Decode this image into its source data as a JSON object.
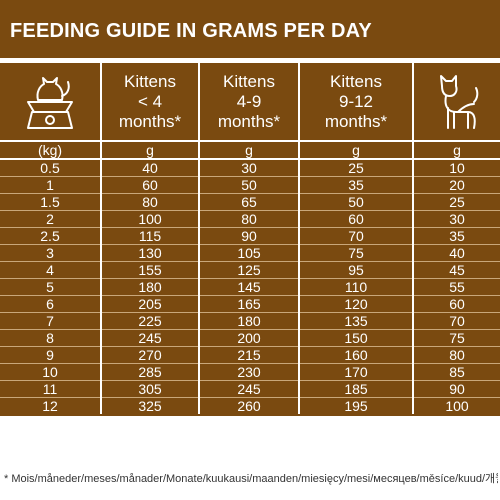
{
  "title": "FEEDING GUIDE IN GRAMS PER DAY",
  "header": {
    "col1_lines": [
      "Kittens",
      "< 4",
      "months*"
    ],
    "col2_lines": [
      "Kittens",
      "4-9",
      "months*"
    ],
    "col3_lines": [
      "Kittens",
      "9-12",
      "months*"
    ]
  },
  "units": {
    "weight": "(kg)",
    "col1": "g",
    "col2": "g",
    "col3": "g",
    "col4": "g"
  },
  "rows": [
    [
      "0.5",
      "40",
      "30",
      "25",
      "10"
    ],
    [
      "1",
      "60",
      "50",
      "35",
      "20"
    ],
    [
      "1.5",
      "80",
      "65",
      "50",
      "25"
    ],
    [
      "2",
      "100",
      "80",
      "60",
      "30"
    ],
    [
      "2.5",
      "115",
      "90",
      "70",
      "35"
    ],
    [
      "3",
      "130",
      "105",
      "75",
      "40"
    ],
    [
      "4",
      "155",
      "125",
      "95",
      "45"
    ],
    [
      "5",
      "180",
      "145",
      "110",
      "55"
    ],
    [
      "6",
      "205",
      "165",
      "120",
      "60"
    ],
    [
      "7",
      "225",
      "180",
      "135",
      "70"
    ],
    [
      "8",
      "245",
      "200",
      "150",
      "75"
    ],
    [
      "9",
      "270",
      "215",
      "160",
      "80"
    ],
    [
      "10",
      "285",
      "230",
      "170",
      "85"
    ],
    [
      "11",
      "305",
      "245",
      "185",
      "90"
    ],
    [
      "12",
      "325",
      "260",
      "195",
      "100"
    ]
  ],
  "footnote": "* Mois/måneder/meses/månader/Monate/kuukausi/maanden/miesięcy/mesi/месяцев/měsíce/kuud/개월",
  "icons": {
    "scale": "cat-on-scale-icon",
    "adult": "adult-cat-icon"
  },
  "colors": {
    "brown": "#7a4a10",
    "white": "#ffffff"
  }
}
